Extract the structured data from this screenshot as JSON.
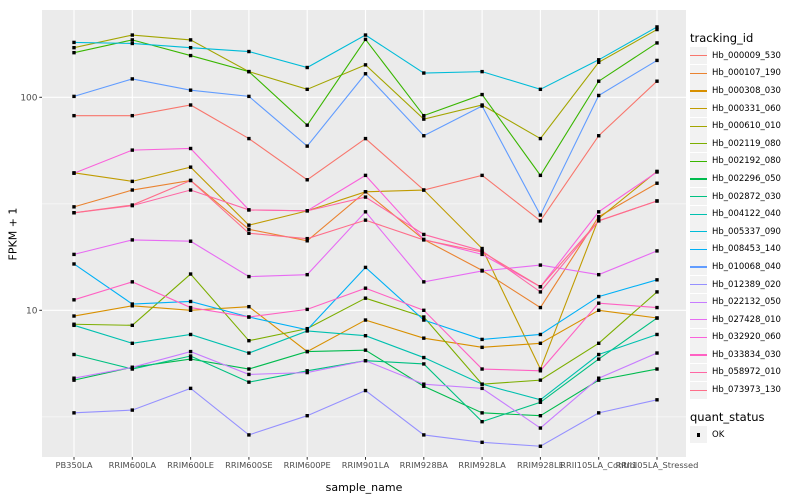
{
  "figure": {
    "background": "#FFFFFF",
    "panel_background": "#EBEBEB",
    "gridline_color": "#FFFFFF",
    "tick_text_color": "#4D4D4D",
    "axis_title_color": "#000000",
    "legend_key_background": "#F2F2F2",
    "point_color": "#000000"
  },
  "chart_data": {
    "type": "line",
    "title": "",
    "xlabel": "sample_name",
    "ylabel": "FPKM + 1",
    "y_scale": "log10",
    "ylim": [
      2.05,
      255
    ],
    "y_tick_labels": [
      "100",
      "10"
    ],
    "y_tick_values": [
      100,
      10
    ],
    "y_minor_gridlines": [
      31.6,
      3.16
    ],
    "grid": true,
    "legend_position": "right",
    "point_shape": "black-square",
    "categories": [
      "PB350LA",
      "RRIM600LA",
      "RRIM600LE",
      "RRIM600SE",
      "RRIM600PE",
      "RRIM901LA",
      "RRIM928BA",
      "RRIM928LA",
      "RRIM928LE",
      "RRII105LA_Control",
      "RRII105LA_Stressed"
    ],
    "legend_title": "tracking_id",
    "series": [
      {
        "name": "Hb_000009_530",
        "color": "#F8766D",
        "values": [
          82,
          82,
          92,
          64,
          41,
          64,
          36.7,
          43,
          26.3,
          66,
          119
        ]
      },
      {
        "name": "Hb_000107_190",
        "color": "#EA8331",
        "values": [
          30.6,
          36.7,
          40.7,
          24,
          21.2,
          36,
          21.5,
          15.4,
          10.3,
          27.5,
          39.5
        ]
      },
      {
        "name": "Hb_000308_030",
        "color": "#D89000",
        "values": [
          9.4,
          10.5,
          10,
          10.4,
          6.4,
          9,
          7.4,
          6.7,
          7,
          10,
          9.2
        ]
      },
      {
        "name": "Hb_000331_060",
        "color": "#C09B00",
        "values": [
          44.2,
          40.3,
          47,
          25.1,
          29.3,
          36,
          36.7,
          19.5,
          5.3,
          27,
          44.9
        ]
      },
      {
        "name": "Hb_000610_010",
        "color": "#A3A500",
        "values": [
          171,
          196,
          186,
          132,
          109,
          142,
          79,
          92,
          64,
          146,
          208
        ]
      },
      {
        "name": "Hb_002119_080",
        "color": "#7CAE00",
        "values": [
          8.6,
          8.5,
          14.8,
          7.2,
          8.2,
          11.4,
          9.3,
          4.5,
          4.7,
          7,
          12.2
        ]
      },
      {
        "name": "Hb_002192_080",
        "color": "#39B600",
        "values": [
          162,
          186,
          157,
          132,
          74,
          187,
          82,
          103,
          43,
          119,
          180
        ]
      },
      {
        "name": "Hb_002296_050",
        "color": "#00BB4E",
        "values": [
          4.7,
          5.4,
          5.9,
          5.3,
          6.4,
          6.5,
          4.4,
          3.3,
          3.2,
          4.7,
          5.3
        ]
      },
      {
        "name": "Hb_002872_030",
        "color": "#00C081",
        "values": [
          6.2,
          5.3,
          6.1,
          4.6,
          5.2,
          5.8,
          5.6,
          3,
          3.7,
          5.9,
          9.2
        ]
      },
      {
        "name": "Hb_004122_040",
        "color": "#00C0AF",
        "values": [
          8.5,
          7,
          7.7,
          6.3,
          8,
          7.6,
          6,
          4.5,
          3.8,
          6.2,
          7.7
        ]
      },
      {
        "name": "Hb_005337_090",
        "color": "#00BCD8",
        "values": [
          181,
          179,
          171,
          164,
          138,
          196,
          130,
          132,
          109,
          150,
          214
        ]
      },
      {
        "name": "Hb_008453_140",
        "color": "#00B0F6",
        "values": [
          16.5,
          10.7,
          11,
          9.3,
          8.1,
          15.9,
          9,
          7.3,
          7.7,
          11.6,
          13.9
        ]
      },
      {
        "name": "Hb_010068_040",
        "color": "#619CFF",
        "values": [
          101,
          122,
          108,
          101,
          59,
          129,
          66,
          91,
          28,
          102,
          149
        ]
      },
      {
        "name": "Hb_012389_020",
        "color": "#9590FF",
        "values": [
          3.3,
          3.4,
          4.3,
          2.6,
          3.2,
          4.2,
          2.6,
          2.4,
          2.3,
          3.3,
          3.8
        ]
      },
      {
        "name": "Hb_022132_050",
        "color": "#C77CFF",
        "values": [
          4.8,
          5.4,
          6.4,
          5,
          5.1,
          5.8,
          4.5,
          4.3,
          2.8,
          4.8,
          6.3
        ]
      },
      {
        "name": "Hb_027428_010",
        "color": "#E76BF3",
        "values": [
          18.3,
          21.4,
          21.1,
          14.4,
          14.7,
          29,
          13.6,
          15.3,
          16.3,
          14.7,
          19
        ]
      },
      {
        "name": "Hb_032920_060",
        "color": "#FA62DB",
        "values": [
          44,
          56.5,
          57.5,
          29.6,
          29.3,
          43,
          21.5,
          18.3,
          12.9,
          29,
          44.6
        ]
      },
      {
        "name": "Hb_033834_030",
        "color": "#FF61C3",
        "values": [
          11.2,
          13.6,
          10.3,
          9.3,
          10.1,
          12.7,
          10,
          5.3,
          5.2,
          10.8,
          10.3
        ]
      },
      {
        "name": "Hb_058972_010",
        "color": "#FF67A4",
        "values": [
          28.7,
          31,
          36.7,
          29.6,
          29.3,
          34,
          22.7,
          19,
          12.2,
          26.3,
          32.6
        ]
      },
      {
        "name": "Hb_073973_130",
        "color": "#FE6E8A",
        "values": [
          28.7,
          31.2,
          40.7,
          23,
          21.7,
          26.5,
          21.4,
          18.8,
          12.9,
          26.3,
          32.6
        ]
      }
    ],
    "quant_legend": {
      "title": "quant_status",
      "label": "OK"
    }
  }
}
